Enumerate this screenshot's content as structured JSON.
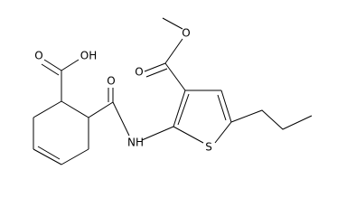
{
  "atoms": [
    {
      "label": "O"
    },
    {
      "label": "OH"
    },
    {
      "label": "O"
    },
    {
      "label": "O"
    },
    {
      "label": "O"
    },
    {
      "label": "NH"
    },
    {
      "label": "S"
    }
  ]
}
